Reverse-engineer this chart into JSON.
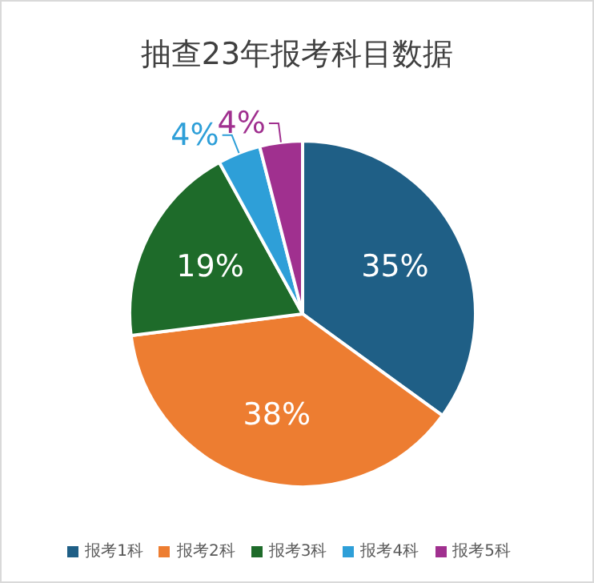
{
  "chart_data": {
    "type": "pie",
    "title": "抽查23年报考科目数据",
    "categories": [
      "报考1科",
      "报考2科",
      "报考3科",
      "报考4科",
      "报考5科"
    ],
    "values": [
      35,
      38,
      19,
      4,
      4
    ],
    "value_labels": [
      "35%",
      "38%",
      "19%",
      "4%",
      "4%"
    ],
    "colors": [
      "#1f5f86",
      "#ed7d31",
      "#1e6b2a",
      "#2e9fd8",
      "#a0308f"
    ],
    "legend": "bottom"
  }
}
